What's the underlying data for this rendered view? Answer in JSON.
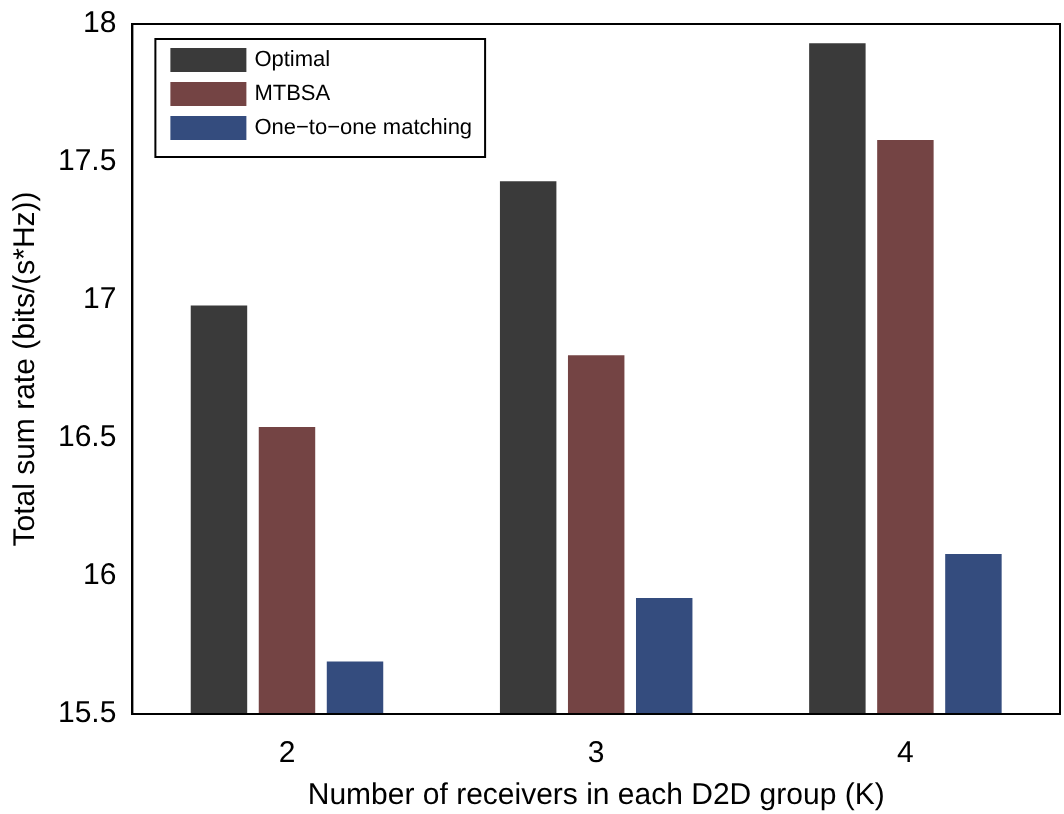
{
  "chart_data": {
    "type": "bar",
    "xlabel": "Number of receivers in each D2D group (K)",
    "ylabel": "Total sum rate (bits/(s*Hz))",
    "categories": [
      "2",
      "3",
      "4"
    ],
    "series": [
      {
        "name": "Optimal",
        "color": "#3a3a3a",
        "values": [
          16.98,
          17.43,
          17.93
        ]
      },
      {
        "name": "MTBSA",
        "color": "#744444",
        "values": [
          16.54,
          16.8,
          17.58
        ]
      },
      {
        "name": "One−to−one matching",
        "color": "#344c7e",
        "values": [
          15.69,
          15.92,
          16.08
        ]
      }
    ],
    "ylim": [
      15.5,
      18
    ],
    "yticks": [
      15.5,
      16,
      16.5,
      17,
      17.5,
      18
    ],
    "grid": false,
    "legend": "top left"
  }
}
